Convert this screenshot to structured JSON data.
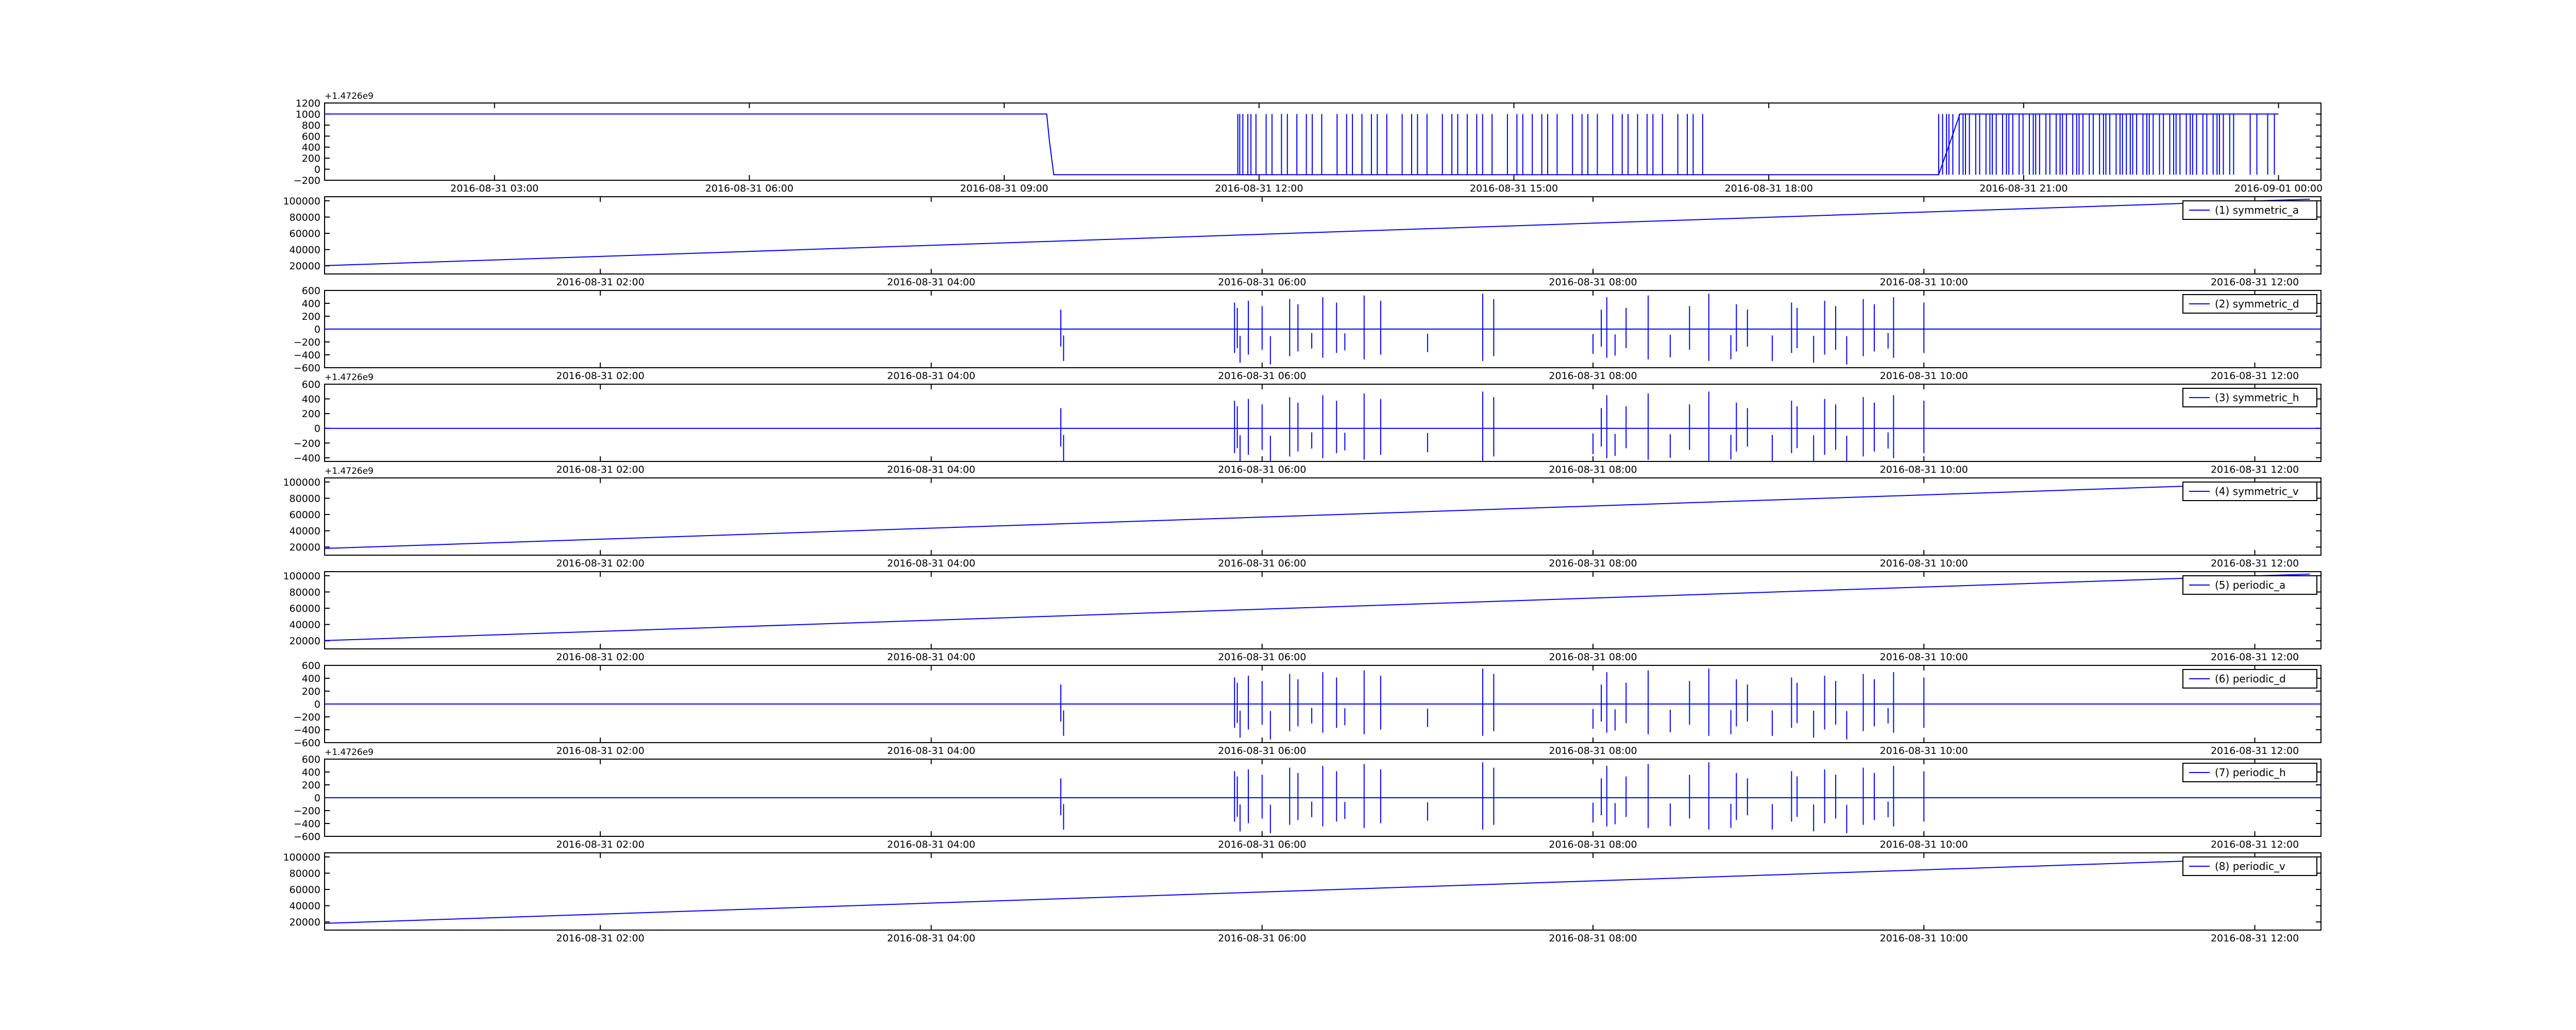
{
  "colors": {
    "line": "#0000ff",
    "axes": "#000000",
    "background": "#ffffff"
  },
  "chart_data": [
    {
      "type": "line",
      "legend": "",
      "xticks": [
        "2016-08-31 03:00",
        "2016-08-31 06:00",
        "2016-08-31 09:00",
        "2016-08-31 12:00",
        "2016-08-31 15:00",
        "2016-08-31 18:00",
        "2016-08-31 21:00",
        "2016-09-01 00:00"
      ],
      "yticks": [
        "1200",
        "1000",
        "800",
        "600",
        "400",
        "200",
        "0",
        "−200"
      ],
      "ylim": [
        -200,
        1200
      ],
      "offset_text": "+1.4726e9",
      "series": [
        {
          "style": "step-bursts",
          "baseline": 1000,
          "low": -100,
          "x": [
            "00:00",
            "09:30",
            "09:32",
            "09:35",
            "09:38",
            "12:00",
            "12:30",
            "15:00",
            "15:30",
            "16:00",
            "16:30",
            "17:00",
            "17:30",
            "18:00",
            "18:30",
            "19:00",
            "19:30",
            "20:00",
            "20:15",
            "20:30",
            "24:00"
          ],
          "y": [
            1000,
            1000,
            500,
            -100,
            -100,
            -100,
            -100,
            -100,
            -100,
            -100,
            -100,
            -100,
            -100,
            -100,
            -100,
            -100,
            -100,
            -100,
            1000,
            1000,
            1000
          ]
        }
      ]
    },
    {
      "type": "line",
      "legend": "(1) symmetric_a",
      "xticks": [
        "2016-08-31 02:00",
        "2016-08-31 04:00",
        "2016-08-31 06:00",
        "2016-08-31 08:00",
        "2016-08-31 10:00",
        "2016-08-31 12:00"
      ],
      "yticks": [
        "100000",
        "80000",
        "60000",
        "40000",
        "20000"
      ],
      "ylim": [
        10000,
        105000
      ],
      "offset_text": "",
      "series": [
        {
          "style": "ramp",
          "x": [
            "00:00",
            "12:20"
          ],
          "y": [
            18000,
            102000
          ]
        }
      ]
    },
    {
      "type": "line",
      "legend": "(2) symmetric_d",
      "xticks": [
        "2016-08-31 02:00",
        "2016-08-31 04:00",
        "2016-08-31 06:00",
        "2016-08-31 08:00",
        "2016-08-31 10:00",
        "2016-08-31 12:00"
      ],
      "yticks": [
        "600",
        "400",
        "200",
        "0",
        "−200",
        "−400",
        "−600"
      ],
      "ylim": [
        -600,
        600
      ],
      "offset_text": "",
      "series": [
        {
          "style": "spikes",
          "baseline": 0,
          "amplitude": 550,
          "events": [
            "04:47",
            "04:48",
            "05:50",
            "05:51",
            "05:52",
            "05:55",
            "06:00",
            "06:03",
            "06:10",
            "06:13",
            "06:18",
            "06:22",
            "06:27",
            "06:30",
            "06:37",
            "06:43",
            "07:00",
            "07:20",
            "07:24",
            "08:00",
            "08:03",
            "08:05",
            "08:08",
            "08:12",
            "08:20",
            "08:28",
            "08:35",
            "08:42",
            "08:50",
            "08:52",
            "08:56",
            "09:05",
            "09:12",
            "09:14",
            "09:20",
            "09:24",
            "09:28",
            "09:32",
            "09:38",
            "09:42",
            "09:47",
            "09:49",
            "10:00"
          ]
        }
      ]
    },
    {
      "type": "line",
      "legend": "(3) symmetric_h",
      "xticks": [
        "2016-08-31 02:00",
        "2016-08-31 04:00",
        "2016-08-31 06:00",
        "2016-08-31 08:00",
        "2016-08-31 10:00",
        "2016-08-31 12:00"
      ],
      "yticks": [
        "600",
        "400",
        "200",
        "0",
        "−200",
        "−400"
      ],
      "ylim": [
        -450,
        600
      ],
      "offset_text": "+1.4726e9",
      "series": [
        {
          "style": "spikes",
          "baseline": 0,
          "amplitude": 500,
          "events": [
            "04:47",
            "04:48",
            "05:50",
            "05:51",
            "05:52",
            "05:55",
            "06:00",
            "06:03",
            "06:10",
            "06:13",
            "06:18",
            "06:22",
            "06:27",
            "06:30",
            "06:37",
            "06:43",
            "07:00",
            "07:20",
            "07:24",
            "08:00",
            "08:03",
            "08:05",
            "08:08",
            "08:12",
            "08:20",
            "08:28",
            "08:35",
            "08:42",
            "08:50",
            "08:52",
            "08:56",
            "09:05",
            "09:12",
            "09:14",
            "09:20",
            "09:24",
            "09:28",
            "09:32",
            "09:38",
            "09:42",
            "09:47",
            "09:49",
            "10:00"
          ]
        }
      ]
    },
    {
      "type": "line",
      "legend": "(4) symmetric_v",
      "xticks": [
        "2016-08-31 02:00",
        "2016-08-31 04:00",
        "2016-08-31 06:00",
        "2016-08-31 08:00",
        "2016-08-31 10:00",
        "2016-08-31 12:00"
      ],
      "yticks": [
        "100000",
        "80000",
        "60000",
        "40000",
        "20000"
      ],
      "ylim": [
        10000,
        105000
      ],
      "offset_text": "+1.4726e9",
      "series": [
        {
          "style": "ramp",
          "x": [
            "00:00",
            "12:20"
          ],
          "y": [
            16000,
            100000
          ]
        }
      ]
    },
    {
      "type": "line",
      "legend": "(5) periodic_a",
      "xticks": [
        "2016-08-31 02:00",
        "2016-08-31 04:00",
        "2016-08-31 06:00",
        "2016-08-31 08:00",
        "2016-08-31 10:00",
        "2016-08-31 12:00"
      ],
      "yticks": [
        "100000",
        "80000",
        "60000",
        "40000",
        "20000"
      ],
      "ylim": [
        10000,
        105000
      ],
      "offset_text": "",
      "series": [
        {
          "style": "ramp",
          "x": [
            "00:00",
            "12:20"
          ],
          "y": [
            18000,
            102000
          ]
        }
      ]
    },
    {
      "type": "line",
      "legend": "(6) periodic_d",
      "xticks": [
        "2016-08-31 02:00",
        "2016-08-31 04:00",
        "2016-08-31 06:00",
        "2016-08-31 08:00",
        "2016-08-31 10:00",
        "2016-08-31 12:00"
      ],
      "yticks": [
        "600",
        "400",
        "200",
        "0",
        "−200",
        "−400",
        "−600"
      ],
      "ylim": [
        -600,
        600
      ],
      "offset_text": "",
      "series": [
        {
          "style": "spikes",
          "baseline": 0,
          "amplitude": 550,
          "events": [
            "04:47",
            "04:48",
            "05:50",
            "05:51",
            "05:52",
            "05:55",
            "06:00",
            "06:03",
            "06:10",
            "06:13",
            "06:18",
            "06:22",
            "06:27",
            "06:30",
            "06:37",
            "06:43",
            "07:00",
            "07:20",
            "07:24",
            "08:00",
            "08:03",
            "08:05",
            "08:08",
            "08:12",
            "08:20",
            "08:28",
            "08:35",
            "08:42",
            "08:50",
            "08:52",
            "08:56",
            "09:05",
            "09:12",
            "09:14",
            "09:20",
            "09:24",
            "09:28",
            "09:32",
            "09:38",
            "09:42",
            "09:47",
            "09:49",
            "10:00"
          ]
        }
      ]
    },
    {
      "type": "line",
      "legend": "(7) periodic_h",
      "xticks": [
        "2016-08-31 02:00",
        "2016-08-31 04:00",
        "2016-08-31 06:00",
        "2016-08-31 08:00",
        "2016-08-31 10:00",
        "2016-08-31 12:00"
      ],
      "yticks": [
        "600",
        "400",
        "200",
        "0",
        "−200",
        "−400",
        "−600"
      ],
      "ylim": [
        -600,
        600
      ],
      "offset_text": "+1.4726e9",
      "series": [
        {
          "style": "spikes",
          "baseline": 0,
          "amplitude": 550,
          "events": [
            "04:47",
            "04:48",
            "05:50",
            "05:51",
            "05:52",
            "05:55",
            "06:00",
            "06:03",
            "06:10",
            "06:13",
            "06:18",
            "06:22",
            "06:27",
            "06:30",
            "06:37",
            "06:43",
            "07:00",
            "07:20",
            "07:24",
            "08:00",
            "08:03",
            "08:05",
            "08:08",
            "08:12",
            "08:20",
            "08:28",
            "08:35",
            "08:42",
            "08:50",
            "08:52",
            "08:56",
            "09:05",
            "09:12",
            "09:14",
            "09:20",
            "09:24",
            "09:28",
            "09:32",
            "09:38",
            "09:42",
            "09:47",
            "09:49",
            "10:00"
          ]
        }
      ]
    },
    {
      "type": "line",
      "legend": "(8) periodic_v",
      "xticks": [
        "2016-08-31 02:00",
        "2016-08-31 04:00",
        "2016-08-31 06:00",
        "2016-08-31 08:00",
        "2016-08-31 10:00",
        "2016-08-31 12:00"
      ],
      "yticks": [
        "100000",
        "80000",
        "60000",
        "40000",
        "20000"
      ],
      "ylim": [
        10000,
        105000
      ],
      "offset_text": "",
      "series": [
        {
          "style": "ramp",
          "x": [
            "00:00",
            "12:20"
          ],
          "y": [
            16000,
            100000
          ]
        }
      ]
    }
  ]
}
